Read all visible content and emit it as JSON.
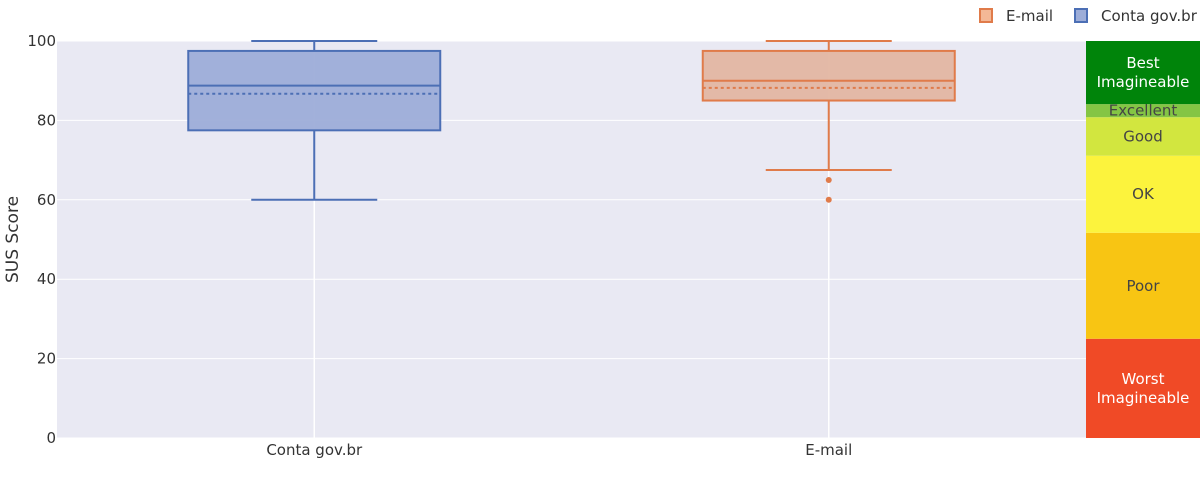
{
  "chart_data": {
    "type": "box",
    "title": "",
    "xlabel": "",
    "ylabel": "SUS Score",
    "ylim": [
      0,
      100
    ],
    "yticks": [
      0,
      20,
      40,
      60,
      80,
      100
    ],
    "categories": [
      "Conta gov.br",
      "E-mail"
    ],
    "grid": true,
    "legend_position": "top-right",
    "legend": [
      {
        "label": "E-mail",
        "fill": "#f4b896",
        "stroke": "#e07b4a"
      },
      {
        "label": "Conta gov.br",
        "fill": "#9dadd8",
        "stroke": "#4c6fb5"
      }
    ],
    "series": [
      {
        "name": "Conta gov.br",
        "category": "Conta gov.br",
        "min": 60,
        "q1": 77.5,
        "median": 88.75,
        "mean": 86.7,
        "q3": 97.5,
        "max": 100,
        "outliers": [],
        "fill": "#9dadd8",
        "stroke": "#4c6fb5"
      },
      {
        "name": "E-mail",
        "category": "E-mail",
        "min": 67.5,
        "q1": 85,
        "median": 90,
        "mean": 88.2,
        "q3": 97.5,
        "max": 100,
        "outliers": [
          65,
          60
        ],
        "fill": "#e3b6a2",
        "stroke": "#e07b4a"
      }
    ],
    "rating_bands": [
      {
        "label": "Worst Imagineable",
        "from": 0,
        "to": 25,
        "color": "#f04a26",
        "text_color": "#ffffff"
      },
      {
        "label": "Poor",
        "from": 25,
        "to": 51.7,
        "color": "#f8c513",
        "text_color": "#444444"
      },
      {
        "label": "OK",
        "from": 51.7,
        "to": 71.1,
        "color": "#fcf33d",
        "text_color": "#444444"
      },
      {
        "label": "Good",
        "from": 71.1,
        "to": 80.8,
        "color": "#d2e63f",
        "text_color": "#444444"
      },
      {
        "label": "Excellent",
        "from": 80.8,
        "to": 84.1,
        "color": "#84c544",
        "text_color": "#444444"
      },
      {
        "label": "Best Imagineable",
        "from": 84.1,
        "to": 100,
        "color": "#00840a",
        "text_color": "#ffffff"
      }
    ],
    "colors": {
      "plot_background": "#e9e9f3",
      "grid": "#ffffff",
      "axis_text": "#333333"
    }
  }
}
